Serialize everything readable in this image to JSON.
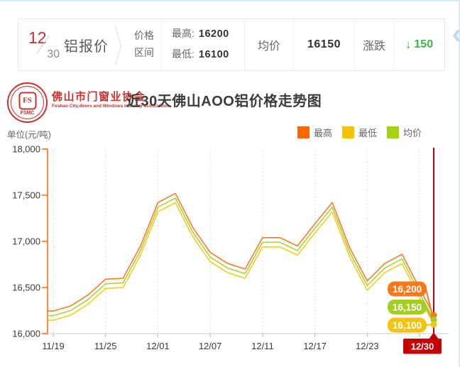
{
  "quote_bar": {
    "date_month": "12",
    "date_day": "30",
    "product": "铝报价",
    "range_label_line1": "价格",
    "range_label_line2": "区间",
    "high_label": "最高:",
    "high_value": "16200",
    "low_label": "最低:",
    "low_value": "16100",
    "avg_label": "均价",
    "avg_value": "16150",
    "change_label": "涨跌",
    "change_value": "150",
    "change_direction": "down",
    "change_color": "#3bb44a"
  },
  "brand": {
    "org_name": "佛山市门窗业协会",
    "org_name_en": "Foshan City,doors and Windows Industry association",
    "logo_monogram": "FS",
    "logo_abbr": "FSMC",
    "logo_color": "#c9302f"
  },
  "title": "近30天佛山AOO铝价格走势图",
  "unit_label": "单位(元/吨)",
  "legend": [
    {
      "label": "最高",
      "color": "#ff6600"
    },
    {
      "label": "最低",
      "color": "#f5c400"
    },
    {
      "label": "均价",
      "color": "#a4d40a"
    }
  ],
  "chart_data": {
    "type": "line",
    "title": "近30天佛山AOO铝价格走势图",
    "ylabel": "元/吨",
    "ylim": [
      16000,
      18000
    ],
    "grid": "dashed-vertical",
    "legend_position": "top-right",
    "y_tick_values": [
      18000,
      17500,
      17000,
      16500,
      16000
    ],
    "y_tick_labels": [
      "18,000",
      "17,500",
      "17,000",
      "16,500",
      "16,000"
    ],
    "x_tick_labels": [
      "11/19",
      "11/25",
      "12/01",
      "12/07",
      "12/11",
      "12/17",
      "12/23",
      "12/30"
    ],
    "x_tick_indices": [
      0,
      3,
      6,
      9,
      12,
      15,
      18,
      21
    ],
    "series": [
      {
        "name": "最低",
        "color": "#f0cf1a",
        "values": [
          16145,
          16200,
          16320,
          16490,
          16500,
          16850,
          17320,
          17420,
          17050,
          16780,
          16660,
          16600,
          16940,
          16940,
          16850,
          17090,
          17320,
          16830,
          16470,
          16660,
          16760,
          16390,
          16100
        ]
      },
      {
        "name": "均价",
        "color": "#abd040",
        "values": [
          16195,
          16250,
          16370,
          16540,
          16550,
          16900,
          17370,
          17470,
          17100,
          16830,
          16710,
          16650,
          16990,
          16990,
          16900,
          17140,
          17370,
          16880,
          16520,
          16710,
          16810,
          16440,
          16150
        ]
      },
      {
        "name": "最高",
        "color": "#f97b2a",
        "values": [
          16245,
          16300,
          16420,
          16590,
          16600,
          16950,
          17420,
          17520,
          17150,
          16880,
          16760,
          16700,
          17040,
          17040,
          16950,
          17190,
          17420,
          16930,
          16570,
          16760,
          16860,
          16490,
          16200
        ]
      }
    ],
    "end_labels": [
      {
        "text": "16,200",
        "value": 16200,
        "color": "#f8791c"
      },
      {
        "text": "16,150",
        "value": 16150,
        "color": "#a2cf22"
      },
      {
        "text": "16,100",
        "value": 16100,
        "color": "#f2c411"
      }
    ],
    "end_marker_label": {
      "text": "12/30",
      "color": "#c40000"
    },
    "current_marker_line_color": "#a80808"
  }
}
